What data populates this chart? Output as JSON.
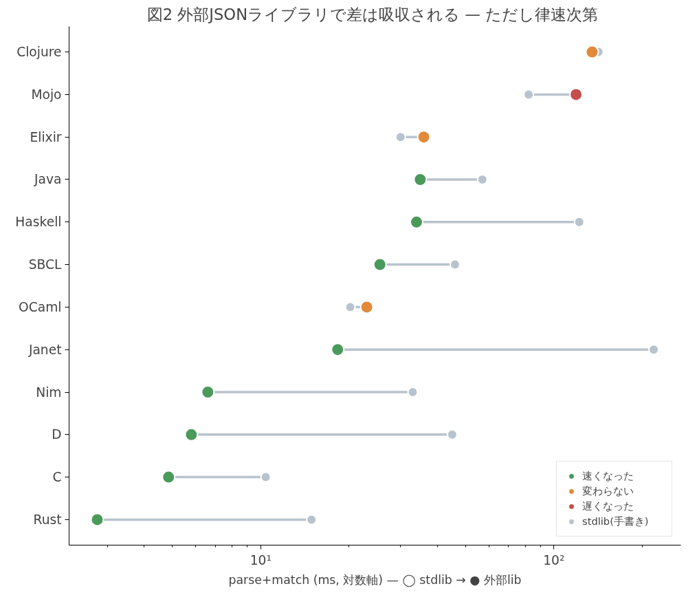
{
  "chart_data": {
    "type": "scatter",
    "orientation": "horizontal",
    "log": "x",
    "title": "図2  外部JSONライブラリで差は吸収される — ただし律速次第",
    "xlabel": "parse+match (ms, 対数軸) — ◯ stdlib → ● 外部lib",
    "categories": [
      "Clojure",
      "Mojo",
      "Elixir",
      "Java",
      "Haskell",
      "SBCL",
      "OCaml",
      "Janet",
      "Nim",
      "D",
      "C",
      "Rust"
    ],
    "series": [
      {
        "name": "速くなった",
        "color": "#4a9a5a",
        "values": [
          null,
          null,
          null,
          35,
          34,
          25.5,
          null,
          18.3,
          6.6,
          5.8,
          4.85,
          2.77
        ]
      },
      {
        "name": "変わらない",
        "color": "#e08a3a",
        "values": [
          135,
          null,
          36,
          null,
          null,
          null,
          23,
          null,
          null,
          null,
          null,
          null
        ]
      },
      {
        "name": "遅くなった",
        "color": "#c44e4c",
        "values": [
          null,
          119,
          null,
          null,
          null,
          null,
          null,
          null,
          null,
          null,
          null,
          null
        ]
      },
      {
        "name": "stdlib(手書き)",
        "color": "#b8c3cd",
        "values": [
          142,
          82,
          30,
          57,
          122,
          46,
          20.2,
          219,
          33,
          45,
          10.4,
          14.9
        ]
      }
    ],
    "xlim": [
      2.22,
      271
    ],
    "xticks": [
      {
        "value": 3,
        "label": null
      },
      {
        "value": 4,
        "label": null
      },
      {
        "value": 5,
        "label": null
      },
      {
        "value": 6,
        "label": null
      },
      {
        "value": 7,
        "label": null
      },
      {
        "value": 8,
        "label": null
      },
      {
        "value": 9,
        "label": null
      },
      {
        "value": 10,
        "label": "10¹"
      },
      {
        "value": 20,
        "label": null
      },
      {
        "value": 30,
        "label": null
      },
      {
        "value": 40,
        "label": null
      },
      {
        "value": 50,
        "label": null
      },
      {
        "value": 60,
        "label": null
      },
      {
        "value": 70,
        "label": null
      },
      {
        "value": 80,
        "label": null
      },
      {
        "value": 90,
        "label": null
      },
      {
        "value": 100,
        "label": "10²"
      },
      {
        "value": 200,
        "label": null
      }
    ],
    "marker": "circle",
    "grid": false,
    "legend": "bottom right"
  }
}
